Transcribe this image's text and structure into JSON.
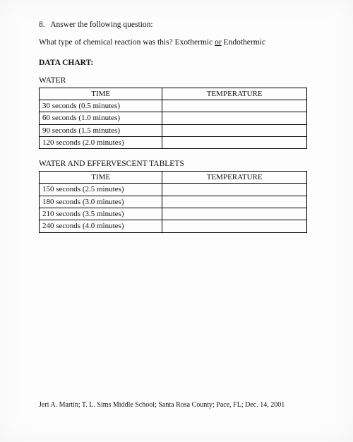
{
  "question": {
    "number": "8.",
    "prompt": "Answer the following question:",
    "body_prefix": "What type of chemical reaction was this?  Exothermic  ",
    "or_word": "or",
    "body_suffix": "  Endothermic"
  },
  "chart_heading": "DATA CHART:",
  "table1": {
    "title": "WATER",
    "headers": [
      "TIME",
      "TEMPERATURE"
    ],
    "rows": [
      [
        "30 seconds (0.5 minutes)",
        ""
      ],
      [
        "60 seconds (1.0 minutes)",
        ""
      ],
      [
        "90 seconds (1.5 minutes)",
        ""
      ],
      [
        "120 seconds (2.0 minutes)",
        ""
      ]
    ]
  },
  "table2": {
    "title": "WATER AND EFFERVESCENT TABLETS",
    "headers": [
      "TIME",
      "TEMPERATURE"
    ],
    "rows": [
      [
        "150 seconds (2.5 minutes)",
        ""
      ],
      [
        "180 seconds (3.0 minutes)",
        ""
      ],
      [
        "210 seconds (3.5 minutes)",
        ""
      ],
      [
        "240 seconds (4.0 minutes)",
        ""
      ]
    ]
  },
  "footer": "Jeri A. Martin; T. L. Sims Middle School; Santa Rosa County; Pace, FL; Dec. 14, 2001"
}
